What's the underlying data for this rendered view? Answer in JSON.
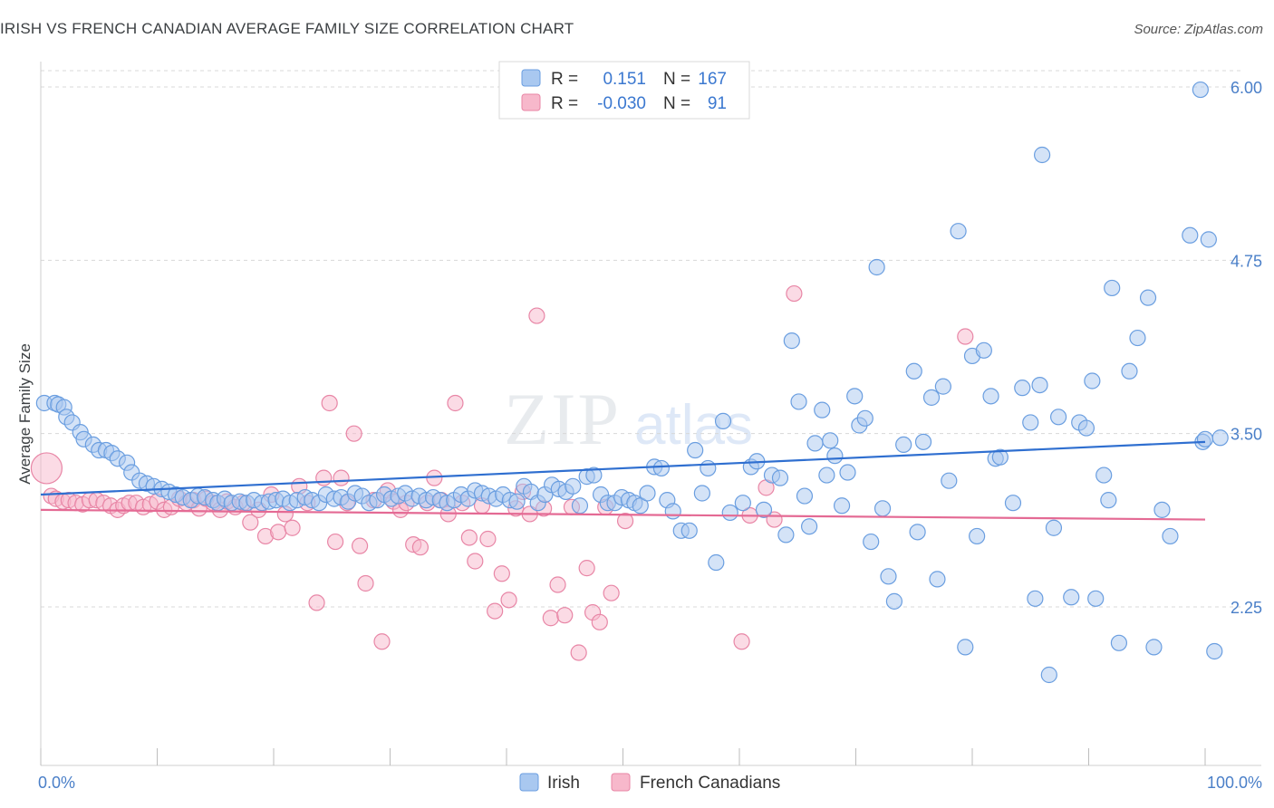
{
  "header": {
    "title": "IRISH VS FRENCH CANADIAN AVERAGE FAMILY SIZE CORRELATION CHART",
    "source": "Source: ZipAtlas.com"
  },
  "watermark": "ZIPatlas",
  "chart_data": {
    "type": "scatter",
    "title": "IRISH VS FRENCH CANADIAN AVERAGE FAMILY SIZE CORRELATION CHART",
    "ylabel": "Average Family Size",
    "xlabel": "",
    "xlim": [
      0,
      100
    ],
    "ylim": [
      1.25,
      6.1
    ],
    "x_tick_labels": [
      "0.0%",
      "100.0%"
    ],
    "y_ticks": [
      2.25,
      3.5,
      4.75,
      6.0
    ],
    "y_tick_labels": [
      "2.25",
      "3.50",
      "4.75",
      "6.00"
    ],
    "grid": "horizontal dashed",
    "legend_position": "top-center",
    "legend": [
      {
        "r_label": "R =",
        "r_value": "0.151",
        "n_label": "N =",
        "n_value": "167",
        "color": "#a9c8f0",
        "stroke": "#6a9ee0"
      },
      {
        "r_label": "R =",
        "r_value": "-0.030",
        "n_label": "N =",
        "n_value": "91",
        "color": "#f7b8cb",
        "stroke": "#e886a6"
      }
    ],
    "series": [
      {
        "name": "Irish",
        "color": "#a9c8f0",
        "stroke": "#6a9ee0",
        "trend_color": "#2f6fd0",
        "trend": [
          [
            0,
            3.06
          ],
          [
            100,
            3.44
          ]
        ],
        "points": [
          [
            0.3,
            3.72
          ],
          [
            1.2,
            3.72
          ],
          [
            1.5,
            3.71
          ],
          [
            2.0,
            3.69
          ],
          [
            2.2,
            3.62
          ],
          [
            2.7,
            3.58
          ],
          [
            3.4,
            3.51
          ],
          [
            3.7,
            3.46
          ],
          [
            4.5,
            3.42
          ],
          [
            5.0,
            3.38
          ],
          [
            5.6,
            3.38
          ],
          [
            6.1,
            3.36
          ],
          [
            6.6,
            3.32
          ],
          [
            7.4,
            3.29
          ],
          [
            7.8,
            3.22
          ],
          [
            8.5,
            3.16
          ],
          [
            9.1,
            3.14
          ],
          [
            9.7,
            3.12
          ],
          [
            10.4,
            3.1
          ],
          [
            11.0,
            3.08
          ],
          [
            11.6,
            3.06
          ],
          [
            12.2,
            3.04
          ],
          [
            12.9,
            3.02
          ],
          [
            13.5,
            3.05
          ],
          [
            14.1,
            3.04
          ],
          [
            14.8,
            3.02
          ],
          [
            15.2,
            3.0
          ],
          [
            15.8,
            3.03
          ],
          [
            16.4,
            3.0
          ],
          [
            17.1,
            3.01
          ],
          [
            17.7,
            3.0
          ],
          [
            18.3,
            3.02
          ],
          [
            19.0,
            3.0
          ],
          [
            19.6,
            3.01
          ],
          [
            20.2,
            3.02
          ],
          [
            20.8,
            3.03
          ],
          [
            21.4,
            3.0
          ],
          [
            22.0,
            3.02
          ],
          [
            22.7,
            3.04
          ],
          [
            23.3,
            3.02
          ],
          [
            23.9,
            3.0
          ],
          [
            24.5,
            3.06
          ],
          [
            25.2,
            3.03
          ],
          [
            25.8,
            3.04
          ],
          [
            26.4,
            3.01
          ],
          [
            27.0,
            3.07
          ],
          [
            27.6,
            3.05
          ],
          [
            28.2,
            3.0
          ],
          [
            28.9,
            3.02
          ],
          [
            29.5,
            3.06
          ],
          [
            30.1,
            3.03
          ],
          [
            30.7,
            3.05
          ],
          [
            31.3,
            3.07
          ],
          [
            31.9,
            3.03
          ],
          [
            32.5,
            3.05
          ],
          [
            33.1,
            3.02
          ],
          [
            33.7,
            3.04
          ],
          [
            34.3,
            3.02
          ],
          [
            34.9,
            3.0
          ],
          [
            35.5,
            3.02
          ],
          [
            36.1,
            3.06
          ],
          [
            36.7,
            3.03
          ],
          [
            37.3,
            3.09
          ],
          [
            37.9,
            3.07
          ],
          [
            38.5,
            3.05
          ],
          [
            39.1,
            3.03
          ],
          [
            39.7,
            3.06
          ],
          [
            40.3,
            3.02
          ],
          [
            40.9,
            3.01
          ],
          [
            41.5,
            3.12
          ],
          [
            42.1,
            3.08
          ],
          [
            42.7,
            3.0
          ],
          [
            43.3,
            3.06
          ],
          [
            43.9,
            3.13
          ],
          [
            44.5,
            3.1
          ],
          [
            45.1,
            3.08
          ],
          [
            45.7,
            3.12
          ],
          [
            46.3,
            2.98
          ],
          [
            46.9,
            3.19
          ],
          [
            47.5,
            3.2
          ],
          [
            48.1,
            3.06
          ],
          [
            48.7,
            3.0
          ],
          [
            49.3,
            3.0
          ],
          [
            49.9,
            3.04
          ],
          [
            50.5,
            3.02
          ],
          [
            51.0,
            3.0
          ],
          [
            51.5,
            2.98
          ],
          [
            52.1,
            3.07
          ],
          [
            52.7,
            3.26
          ],
          [
            53.3,
            3.25
          ],
          [
            53.8,
            3.02
          ],
          [
            54.3,
            2.94
          ],
          [
            55.0,
            2.8
          ],
          [
            55.7,
            2.8
          ],
          [
            56.2,
            3.38
          ],
          [
            56.8,
            3.07
          ],
          [
            57.3,
            3.25
          ],
          [
            58.0,
            2.57
          ],
          [
            58.6,
            3.59
          ],
          [
            59.2,
            2.93
          ],
          [
            60.3,
            3.0
          ],
          [
            61.0,
            3.26
          ],
          [
            61.5,
            3.3
          ],
          [
            62.1,
            2.95
          ],
          [
            62.8,
            3.2
          ],
          [
            63.5,
            3.18
          ],
          [
            64.0,
            2.77
          ],
          [
            64.5,
            4.17
          ],
          [
            65.1,
            3.73
          ],
          [
            65.6,
            3.05
          ],
          [
            66.0,
            2.83
          ],
          [
            66.5,
            3.43
          ],
          [
            67.1,
            3.67
          ],
          [
            67.5,
            3.2
          ],
          [
            67.8,
            3.45
          ],
          [
            68.2,
            3.34
          ],
          [
            68.8,
            2.98
          ],
          [
            69.3,
            3.22
          ],
          [
            69.9,
            3.77
          ],
          [
            70.3,
            3.56
          ],
          [
            70.8,
            3.61
          ],
          [
            71.3,
            2.72
          ],
          [
            71.8,
            4.7
          ],
          [
            72.3,
            2.96
          ],
          [
            72.8,
            2.47
          ],
          [
            73.3,
            2.29
          ],
          [
            74.1,
            3.42
          ],
          [
            75.0,
            3.95
          ],
          [
            75.3,
            2.79
          ],
          [
            75.8,
            3.44
          ],
          [
            76.5,
            3.76
          ],
          [
            77.0,
            2.45
          ],
          [
            77.5,
            3.84
          ],
          [
            78.0,
            3.16
          ],
          [
            78.8,
            4.96
          ],
          [
            79.4,
            1.96
          ],
          [
            80.0,
            4.06
          ],
          [
            80.4,
            2.76
          ],
          [
            81.0,
            4.1
          ],
          [
            81.6,
            3.77
          ],
          [
            82.0,
            3.32
          ],
          [
            82.4,
            3.33
          ],
          [
            83.5,
            3.0
          ],
          [
            84.3,
            3.83
          ],
          [
            85.0,
            3.58
          ],
          [
            85.4,
            2.31
          ],
          [
            85.8,
            3.85
          ],
          [
            86.0,
            5.51
          ],
          [
            86.6,
            1.76
          ],
          [
            87.0,
            2.82
          ],
          [
            87.4,
            3.62
          ],
          [
            88.5,
            2.32
          ],
          [
            89.2,
            3.58
          ],
          [
            89.8,
            3.54
          ],
          [
            90.3,
            3.88
          ],
          [
            90.6,
            2.31
          ],
          [
            91.3,
            3.2
          ],
          [
            91.7,
            3.02
          ],
          [
            92.0,
            4.55
          ],
          [
            92.6,
            1.99
          ],
          [
            93.5,
            3.95
          ],
          [
            94.2,
            4.19
          ],
          [
            95.1,
            4.48
          ],
          [
            95.6,
            1.96
          ],
          [
            96.3,
            2.95
          ],
          [
            97.0,
            2.76
          ],
          [
            98.7,
            4.93
          ],
          [
            99.6,
            5.98
          ],
          [
            99.8,
            3.44
          ],
          [
            100,
            3.46
          ],
          [
            100.3,
            4.9
          ],
          [
            100.8,
            1.93
          ],
          [
            101.3,
            3.47
          ]
        ]
      },
      {
        "name": "French Canadians",
        "color": "#f7b8cb",
        "stroke": "#e886a6",
        "trend_color": "#e46a94",
        "trend": [
          [
            0,
            2.95
          ],
          [
            100,
            2.88
          ]
        ],
        "points": [
          [
            0.5,
            3.25
          ],
          [
            0.9,
            3.05
          ],
          [
            1.3,
            3.03
          ],
          [
            1.9,
            3.01
          ],
          [
            2.4,
            3.02
          ],
          [
            3.0,
            3.0
          ],
          [
            3.6,
            2.99
          ],
          [
            4.2,
            3.02
          ],
          [
            4.8,
            3.02
          ],
          [
            5.4,
            3.0
          ],
          [
            6.0,
            2.98
          ],
          [
            6.6,
            2.95
          ],
          [
            7.1,
            2.98
          ],
          [
            7.6,
            3.0
          ],
          [
            8.2,
            3.0
          ],
          [
            8.8,
            2.97
          ],
          [
            9.4,
            2.99
          ],
          [
            10.0,
            3.01
          ],
          [
            10.6,
            2.95
          ],
          [
            11.2,
            2.97
          ],
          [
            11.9,
            3.03
          ],
          [
            12.5,
            3.0
          ],
          [
            13.1,
            3.02
          ],
          [
            13.6,
            2.96
          ],
          [
            14.2,
            3.03
          ],
          [
            14.8,
            3.0
          ],
          [
            15.4,
            2.95
          ],
          [
            16.0,
            3.01
          ],
          [
            16.7,
            2.97
          ],
          [
            17.4,
            3.0
          ],
          [
            18.0,
            2.86
          ],
          [
            18.7,
            2.95
          ],
          [
            19.3,
            2.76
          ],
          [
            19.8,
            3.06
          ],
          [
            20.4,
            2.79
          ],
          [
            21.0,
            2.92
          ],
          [
            21.6,
            2.82
          ],
          [
            22.2,
            3.12
          ],
          [
            22.9,
            3.0
          ],
          [
            23.7,
            2.28
          ],
          [
            24.3,
            3.18
          ],
          [
            24.8,
            3.72
          ],
          [
            25.3,
            2.72
          ],
          [
            25.8,
            3.18
          ],
          [
            26.3,
            3.0
          ],
          [
            26.9,
            3.5
          ],
          [
            27.4,
            2.69
          ],
          [
            27.9,
            2.42
          ],
          [
            28.6,
            3.02
          ],
          [
            29.3,
            2.0
          ],
          [
            29.8,
            3.09
          ],
          [
            30.3,
            3.01
          ],
          [
            30.9,
            2.95
          ],
          [
            31.4,
            3.0
          ],
          [
            32.0,
            2.7
          ],
          [
            32.6,
            2.68
          ],
          [
            33.2,
            3.0
          ],
          [
            33.8,
            3.18
          ],
          [
            34.4,
            3.02
          ],
          [
            35.0,
            2.92
          ],
          [
            35.6,
            3.72
          ],
          [
            36.2,
            3.0
          ],
          [
            36.8,
            2.75
          ],
          [
            37.3,
            2.58
          ],
          [
            37.9,
            2.98
          ],
          [
            38.4,
            2.74
          ],
          [
            39.0,
            2.22
          ],
          [
            39.6,
            2.49
          ],
          [
            40.2,
            2.3
          ],
          [
            40.8,
            2.96
          ],
          [
            41.4,
            3.08
          ],
          [
            42.0,
            2.92
          ],
          [
            42.6,
            4.35
          ],
          [
            43.2,
            2.96
          ],
          [
            43.8,
            2.17
          ],
          [
            44.4,
            2.41
          ],
          [
            45.0,
            2.19
          ],
          [
            45.6,
            2.97
          ],
          [
            46.2,
            1.92
          ],
          [
            46.9,
            2.53
          ],
          [
            47.4,
            2.21
          ],
          [
            48.0,
            2.14
          ],
          [
            48.5,
            2.97
          ],
          [
            49.0,
            2.35
          ],
          [
            50.2,
            2.87
          ],
          [
            60.2,
            2.0
          ],
          [
            60.9,
            2.91
          ],
          [
            62.3,
            3.11
          ],
          [
            63.0,
            2.88
          ],
          [
            64.7,
            4.51
          ],
          [
            79.4,
            4.2
          ]
        ]
      }
    ]
  }
}
